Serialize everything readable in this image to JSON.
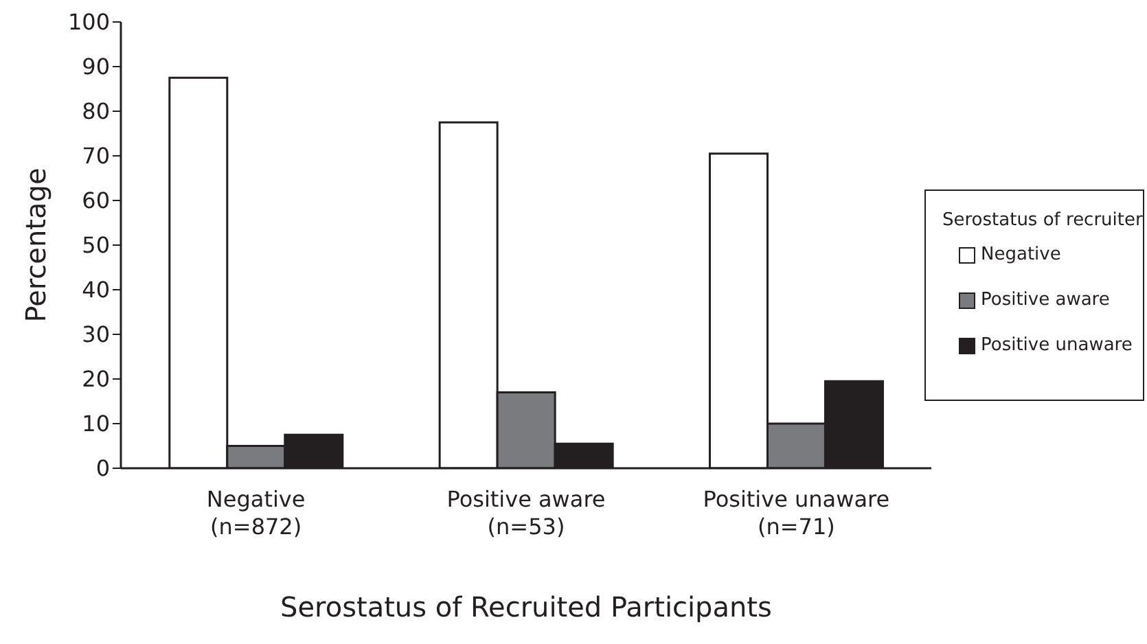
{
  "chart_data": {
    "type": "bar",
    "xlabel": "Serostatus of Recruited Participants",
    "ylabel": "Percentage",
    "legend_title": "Serostatus of recruiter",
    "categories": [
      "Negative\n(n=872)",
      "Positive aware\n(n=53)",
      "Positive unaware\n(n=71)"
    ],
    "series": [
      {
        "name": "Negative",
        "color": "#ffffff",
        "values": [
          87.5,
          77.5,
          70.5
        ]
      },
      {
        "name": "Positive aware",
        "color": "#7a7b7e",
        "values": [
          5,
          17,
          10
        ]
      },
      {
        "name": "Positive unaware",
        "color": "#231f20",
        "values": [
          7.5,
          5.5,
          19.5
        ]
      }
    ],
    "ylim": [
      0,
      100
    ],
    "yticks": [
      0,
      10,
      20,
      30,
      40,
      50,
      60,
      70,
      80,
      90,
      100
    ],
    "grid": false,
    "legend": "right"
  }
}
